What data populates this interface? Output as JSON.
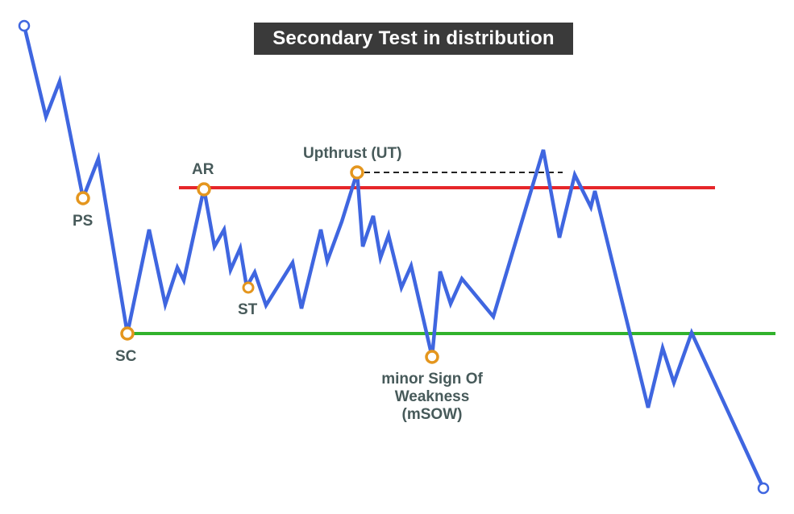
{
  "title": "Secondary Test in distribution",
  "colors": {
    "price_line": "#3f66e0",
    "resistance": "#e6262a",
    "support": "#31b22c",
    "marker": "#e4961e",
    "label": "#475a5a",
    "title_bg": "#3a3a3a",
    "title_text": "#ffffff"
  },
  "labels": {
    "ps": "PS",
    "sc": "SC",
    "ar": "AR",
    "st": "ST",
    "ut": "Upthrust (UT)",
    "msow_line1": "minor Sign Of",
    "msow_line2": "Weakness",
    "msow_line3": "(mSOW)"
  }
}
